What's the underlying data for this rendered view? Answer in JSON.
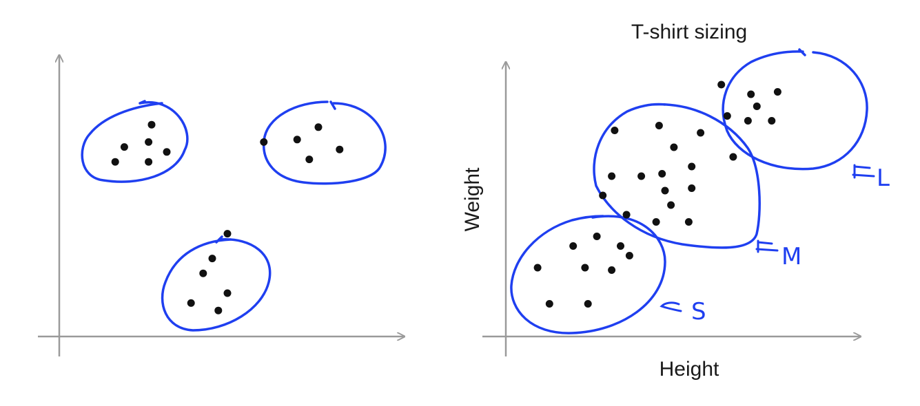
{
  "colors": {
    "axis": "#9a9a9a",
    "cluster_outline": "#1f3ff0",
    "point": "#111111",
    "text": "#1a1a1a"
  },
  "chart_data": [
    {
      "type": "scatter",
      "title": "",
      "xlabel": "",
      "ylabel": "",
      "xlim": [
        0,
        10
      ],
      "ylim": [
        0,
        10
      ],
      "grid": false,
      "series": [
        {
          "points": [
            [
              1.3,
              6.8
            ],
            [
              1.6,
              7.4
            ],
            [
              2.5,
              8.3
            ],
            [
              2.4,
              7.6
            ],
            [
              3.0,
              7.2
            ],
            [
              2.4,
              6.8
            ],
            [
              6.2,
              7.6
            ],
            [
              7.3,
              7.7
            ],
            [
              8.0,
              8.2
            ],
            [
              8.7,
              7.3
            ],
            [
              7.7,
              6.9
            ],
            [
              4.5,
              2.9
            ],
            [
              5.0,
              3.9
            ],
            [
              4.2,
              2.3
            ],
            [
              5.0,
              1.5
            ],
            [
              4.7,
              0.8
            ],
            [
              3.8,
              1.1
            ]
          ]
        }
      ],
      "clusters": 3
    },
    {
      "type": "scatter",
      "title": "T-shirt sizing",
      "xlabel": "Height",
      "ylabel": "Weight",
      "xlim": [
        0,
        10
      ],
      "ylim": [
        0,
        10
      ],
      "grid": false,
      "series": [
        {
          "name": "S",
          "points": [
            [
              0.7,
              2.6
            ],
            [
              1.9,
              3.5
            ],
            [
              2.7,
              3.9
            ],
            [
              3.5,
              3.5
            ],
            [
              3.8,
              3.1
            ],
            [
              2.3,
              2.6
            ],
            [
              3.2,
              2.5
            ],
            [
              1.1,
              1.1
            ],
            [
              2.4,
              1.1
            ]
          ]
        },
        {
          "name": "M",
          "points": [
            [
              3.3,
              8.3
            ],
            [
              4.8,
              8.5
            ],
            [
              5.3,
              7.6
            ],
            [
              3.2,
              6.4
            ],
            [
              4.2,
              6.4
            ],
            [
              4.9,
              6.5
            ],
            [
              5.9,
              6.8
            ],
            [
              5.0,
              5.8
            ],
            [
              5.9,
              5.9
            ],
            [
              2.9,
              5.6
            ],
            [
              5.2,
              5.2
            ],
            [
              3.7,
              4.8
            ],
            [
              4.7,
              4.5
            ],
            [
              5.8,
              4.5
            ]
          ]
        },
        {
          "name": "L",
          "points": [
            [
              6.9,
              10.2
            ],
            [
              7.9,
              9.8
            ],
            [
              8.8,
              9.9
            ],
            [
              8.1,
              9.3
            ],
            [
              7.1,
              8.9
            ],
            [
              7.8,
              8.7
            ],
            [
              8.6,
              8.7
            ],
            [
              6.2,
              8.2
            ],
            [
              7.3,
              7.2
            ]
          ]
        }
      ],
      "cluster_labels": [
        "S",
        "M",
        "L"
      ],
      "annotations": [
        "←S",
        "←M",
        "←L"
      ]
    }
  ]
}
